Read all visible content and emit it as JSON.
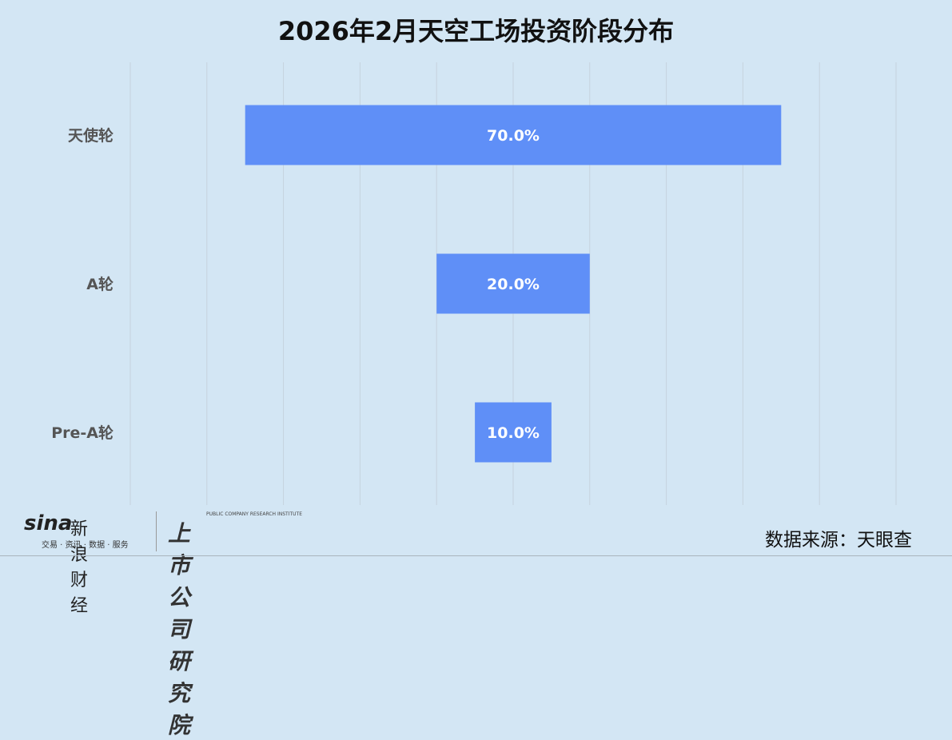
{
  "chart_data": {
    "type": "bar",
    "orientation": "horizontal-centered",
    "title": "2026年2月天空工场投资阶段分布",
    "categories": [
      "天使轮",
      "A轮",
      "Pre-A轮"
    ],
    "values": [
      70.0,
      20.0,
      10.0
    ],
    "data_labels": [
      "70.0%",
      "20.0%",
      "10.0%"
    ],
    "xlim": [
      -50,
      50
    ],
    "grid": true,
    "bar_color": "#5f8ff7",
    "background": "#d3e6f4"
  },
  "footer": {
    "source": "数据来源：天眼查",
    "logo_sina": "sina",
    "logo_sina_name": "新浪财经",
    "logo_sina_sub": "交易 · 资讯 · 数据 · 服务",
    "logo_institute": "上市公司研究院",
    "logo_institute_en": "PUBLIC COMPANY RESEARCH INSTITUTE"
  }
}
